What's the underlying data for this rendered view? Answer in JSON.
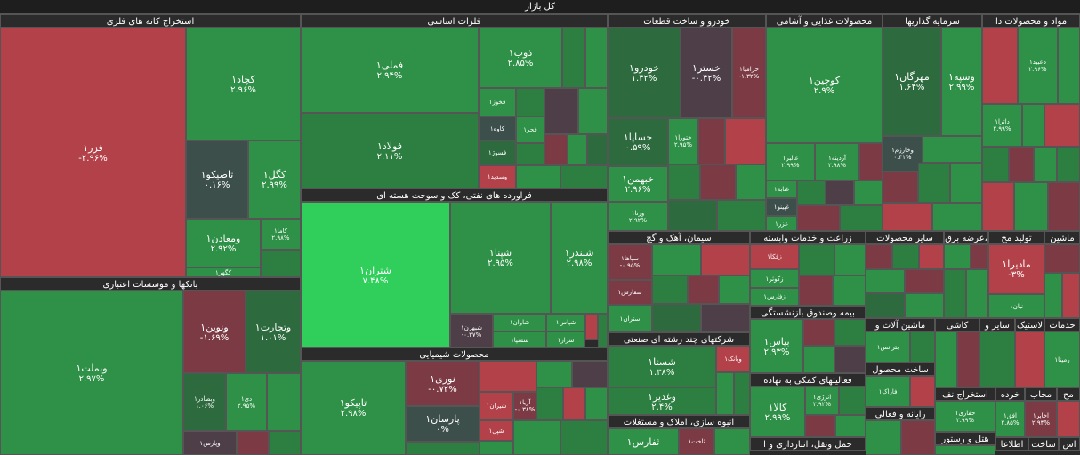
{
  "header": {
    "title": "کل بازار"
  },
  "sectors": {
    "metal_mining": "استخراج کانه های فلزی",
    "basic_metals": "فلزات اساسی",
    "auto_parts": "خودرو و ساخت قطعات",
    "food": "محصولات غذایی و آشامی",
    "investment": "سرمایه گذاریها",
    "pharma_short": "مواد و محصولات دا",
    "banks": "بانکها و موسسات اعتباری",
    "petroleum": "فراورده های نفتی، کک و سوخت هسته ای",
    "cement": "سیمان، آهک و گچ",
    "agriculture": "زراعت و خدمات وابسته",
    "other_products": "سایر محصولات",
    "electricity": "عرضه برق،",
    "manufacture": "تولید مح",
    "machinery": "ماشین",
    "chemical": "محصولات شیمیایی",
    "multi_industry": "شرکتهای چند رشته ای صنعتی",
    "insurance": "بیمه وصندوق بازنشستگی",
    "machines_equipment": "ماشین آلات و",
    "tile": "کاشی",
    "other_food": "سایر و",
    "plastic": "لاستیک",
    "services": "خدمات",
    "construction": "انبوه سازی، املاک و مستغلات",
    "credit_activities": "فعالیتهای کمکی به نهاده",
    "metal_products": "ساخت محصول",
    "oil_extraction": "استخراج نف",
    "retail": "خرده",
    "comm": "مخاب",
    "pharma_small": "مح",
    "it": "رایانه و فعالی",
    "transport": "حمل ونقل، انبارداری و ا",
    "hotel": "هتل و رستور",
    "info": "اطلاعا",
    "ceramic": "ساخت",
    "last": "اس"
  },
  "tiles": {
    "fazar": {
      "name": "فزر۱",
      "pct": "-۲.۹۶%"
    },
    "kechad": {
      "name": "کچاد۱",
      "pct": "۲.۹۶%"
    },
    "tasiko": {
      "name": "تاصیکو۱",
      "pct": "۰.۱۶%"
    },
    "kegol": {
      "name": "کگل۱",
      "pct": "۲.۹۹%"
    },
    "vamaadan": {
      "name": "ومعادن۱",
      "pct": "۲.۹۲%"
    },
    "kama": {
      "name": "کاما۱",
      "pct": "۲.۹۸%"
    },
    "kegohar": {
      "name": "کگهر۱",
      "pct": "۳%"
    },
    "femeli": {
      "name": "فملی۱",
      "pct": "۲.۹۴%"
    },
    "zob": {
      "name": "ذوب۱",
      "pct": "۲.۸۵%"
    },
    "fakhooz": {
      "name": "فخوز۱",
      "pct": ""
    },
    "kaveh": {
      "name": "کاوه۱",
      "pct": ""
    },
    "fajr": {
      "name": "فجر۱",
      "pct": ""
    },
    "fesoorj": {
      "name": "فسوژ۱",
      "pct": ""
    },
    "fooolad": {
      "name": "فولاد۱",
      "pct": "۲.۱۱%"
    },
    "vesdid": {
      "name": "وسدید۱",
      "pct": ""
    },
    "khodro": {
      "name": "خودرو۱",
      "pct": "۱.۴۲%"
    },
    "khesatra": {
      "name": "خستر۱",
      "pct": "-۰.۴۲%"
    },
    "khazamia": {
      "name": "خزامیا۱",
      "pct": "-۱.۳۲%"
    },
    "khesapa": {
      "name": "خساپا۱",
      "pct": "۰.۵۹%"
    },
    "khebahman": {
      "name": "خبهمن۱",
      "pct": "۲.۹۶%"
    },
    "khazar": {
      "name": "ختورا۱",
      "pct": "۲.۹۵%"
    },
    "varena": {
      "name": "ورنا۱",
      "pct": "۲.۹۲%"
    },
    "koochin": {
      "name": "کوچین۱",
      "pct": "۲.۹%"
    },
    "ghaliar": {
      "name": "غالبر۱",
      "pct": "۲.۹۹%"
    },
    "ardina": {
      "name": "آردینه۱",
      "pct": "۲.۹۸%"
    },
    "ghanila": {
      "name": "غنابه۱",
      "pct": ""
    },
    "ghibino": {
      "name": "غپینو۱",
      "pct": ""
    },
    "ghazar": {
      "name": "غزر۱",
      "pct": ""
    },
    "mehregan": {
      "name": "مهرگان۱",
      "pct": "۱.۶۴%"
    },
    "vesapa": {
      "name": "وسپه۱",
      "pct": "۲.۹۹%"
    },
    "vkharazm": {
      "name": "وخارزم۱",
      "pct": "۰.۴۱%"
    },
    "dabid": {
      "name": "دعبید۱",
      "pct": "۲.۹۶%"
    },
    "datra": {
      "name": "داترا۱",
      "pct": "۲.۹۹%"
    },
    "vebmelat": {
      "name": "وبملت۱",
      "pct": "۲.۹۷%"
    },
    "vnovin": {
      "name": "ونوین۱",
      "pct": "-۱.۶۹%"
    },
    "vtejarat": {
      "name": "وتجارت۱",
      "pct": "۱.۰۱%"
    },
    "vbsadr": {
      "name": "وبصادر۱",
      "pct": "۱.۰۶%"
    },
    "dey": {
      "name": "دی۱",
      "pct": "۲.۹۵%"
    },
    "vparsian": {
      "name": "وپارس۱",
      "pct": ""
    },
    "shatran": {
      "name": "شتران۱",
      "pct": "۷.۴۸%"
    },
    "shepna": {
      "name": "شپنا۱",
      "pct": "۲.۹۵%"
    },
    "shbandar": {
      "name": "شبندر۱",
      "pct": "۲.۹۸%"
    },
    "shbahran": {
      "name": "شبهرن۱",
      "pct": "-۰.۳۷%"
    },
    "shavan": {
      "name": "شاوان۱",
      "pct": ""
    },
    "shpas": {
      "name": "شپاس۱",
      "pct": ""
    },
    "shesina": {
      "name": "شسپا۱",
      "pct": ""
    },
    "sharaz": {
      "name": "شراز۱",
      "pct": ""
    },
    "sahama": {
      "name": "سپاها۱",
      "pct": "-۰.۹۵%"
    },
    "safars": {
      "name": "سفارس۱",
      "pct": ""
    },
    "sestaran": {
      "name": "ستران۱",
      "pct": ""
    },
    "zafaka": {
      "name": "زفکا۱",
      "pct": ""
    },
    "zekoter": {
      "name": "زکوثر۱",
      "pct": ""
    },
    "zefars": {
      "name": "زفارس۱",
      "pct": ""
    },
    "tapiko": {
      "name": "تاپیکو۱",
      "pct": "۲.۹۸%"
    },
    "noori": {
      "name": "نوری۱",
      "pct": "-۰.۷۲%"
    },
    "parsan": {
      "name": "پارسان۱",
      "pct": "۰%"
    },
    "shiran": {
      "name": "شیران۱",
      "pct": ""
    },
    "arya": {
      "name": "آریا۱",
      "pct": "-۰.۳۸%"
    },
    "shbel": {
      "name": "شپل۱",
      "pct": ""
    },
    "shasta": {
      "name": "شستا۱",
      "pct": "۱.۳۸%"
    },
    "vaghadir": {
      "name": "وغدیر۱",
      "pct": "۲.۴%"
    },
    "vebank": {
      "name": "وبانک۱",
      "pct": ""
    },
    "vetokas": {
      "name": "وتوکا۱",
      "pct": ""
    },
    "bpas": {
      "name": "بپاس۱",
      "pct": "۲.۹۳%"
    },
    "kala": {
      "name": "کالا۱",
      "pct": "۲.۹۹%"
    },
    "anerzhi": {
      "name": "انرژی۱",
      "pct": "۲.۹۲%"
    },
    "batranes": {
      "name": "بترانس۱",
      "pct": ""
    },
    "farak": {
      "name": "فاراک۱",
      "pct": ""
    },
    "hafari": {
      "name": "حفاری۱",
      "pct": "۲.۹۹%"
    },
    "afgha": {
      "name": "افق۱",
      "pct": "۲.۸۵%"
    },
    "akhaber": {
      "name": "اخابر۱",
      "pct": "۲.۹۴%"
    },
    "madira": {
      "name": "مادیرا۱",
      "pct": "-۳%"
    },
    "niyan": {
      "name": "نیان۱",
      "pct": ""
    },
    "ramapana": {
      "name": "رمپنا۱",
      "pct": ""
    },
    "takhet": {
      "name": "ثاخت۱",
      "pct": ""
    },
    "tafars": {
      "name": "ثفارس۱",
      "pct": ""
    }
  }
}
